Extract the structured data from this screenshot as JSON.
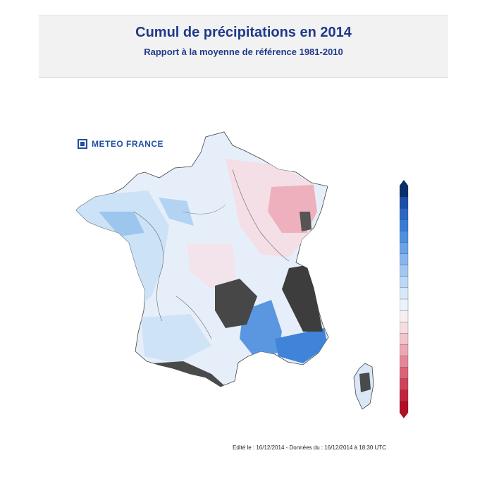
{
  "header": {
    "title": "Cumul de précipitations en 2014",
    "subtitle": "Rapport à la moyenne de référence 1981-2010"
  },
  "logo": {
    "text": "METEO FRANCE",
    "icon": "meteo-france-logo-icon"
  },
  "footer": {
    "text": "Edité le : 16/12/2014 - Données du : 16/12/2014 à 18:30 UTC"
  },
  "legend": {
    "colors_top_to_bottom": [
      "#08306b",
      "#1b4fa8",
      "#2b66c7",
      "#3a7bd5",
      "#4f8fe0",
      "#6aa3e8",
      "#86b6ee",
      "#a1c8f2",
      "#bcd8f6",
      "#d6e8fa",
      "#eaf3fc",
      "#f5eef2",
      "#f5dde2",
      "#f2c4cd",
      "#eca8b4",
      "#e58797",
      "#dc6479",
      "#d0435b",
      "#c2253f",
      "#b00d26"
    ],
    "colors": {
      "above_average": "#3a7bd5",
      "near_average": "#eef4fb",
      "below_average": "#e58797",
      "mountains": "#3d3d3d"
    }
  }
}
